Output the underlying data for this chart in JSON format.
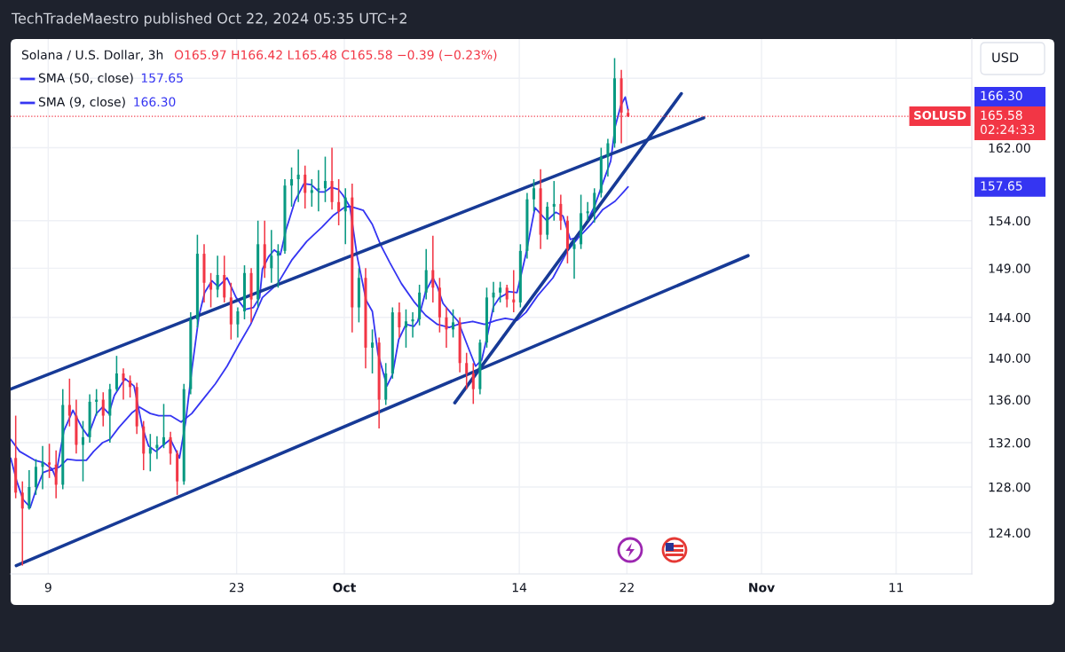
{
  "chart_data": {
    "type": "candlestick",
    "title": "Solana / U.S. Dollar, 3h",
    "subtitle": "O165.97 H166.42 L165.48 C165.58 −0.39 (−0.23%)",
    "x": [
      "2024-09-06T14:00",
      "2024-09-07T02:00",
      "2024-09-07T14:00",
      "2024-09-08T02:00",
      "2024-09-08T14:00",
      "2024-09-09T02:00",
      "2024-09-09T14:00",
      "2024-09-10T02:00",
      "2024-09-10T14:00",
      "2024-09-11T02:00",
      "2024-09-11T14:00",
      "2024-09-12T02:00",
      "2024-09-12T14:00",
      "2024-09-13T02:00",
      "2024-09-13T14:00",
      "2024-09-14T02:00",
      "2024-09-14T14:00",
      "2024-09-15T02:00",
      "2024-09-15T14:00",
      "2024-09-16T02:00",
      "2024-09-16T14:00",
      "2024-09-17T02:00",
      "2024-09-17T14:00",
      "2024-09-18T02:00",
      "2024-09-18T14:00",
      "2024-09-19T02:00",
      "2024-09-19T14:00",
      "2024-09-20T02:00",
      "2024-09-20T14:00",
      "2024-09-21T02:00",
      "2024-09-21T14:00",
      "2024-09-22T02:00",
      "2024-09-22T14:00",
      "2024-09-23T02:00",
      "2024-09-23T14:00",
      "2024-09-24T02:00",
      "2024-09-24T14:00",
      "2024-09-25T02:00",
      "2024-09-25T14:00",
      "2024-09-26T02:00",
      "2024-09-26T14:00",
      "2024-09-27T02:00",
      "2024-09-27T14:00",
      "2024-09-28T02:00",
      "2024-09-28T14:00",
      "2024-09-29T02:00",
      "2024-09-29T14:00",
      "2024-09-30T02:00",
      "2024-09-30T14:00",
      "2024-10-01T02:00",
      "2024-10-01T14:00",
      "2024-10-02T02:00",
      "2024-10-02T14:00",
      "2024-10-03T02:00",
      "2024-10-03T14:00",
      "2024-10-04T02:00",
      "2024-10-04T14:00",
      "2024-10-05T02:00",
      "2024-10-05T14:00",
      "2024-10-06T02:00",
      "2024-10-06T14:00",
      "2024-10-07T02:00",
      "2024-10-07T14:00",
      "2024-10-08T02:00",
      "2024-10-08T14:00",
      "2024-10-09T02:00",
      "2024-10-09T14:00",
      "2024-10-10T02:00",
      "2024-10-10T14:00",
      "2024-10-11T02:00",
      "2024-10-11T14:00",
      "2024-10-12T02:00",
      "2024-10-12T14:00",
      "2024-10-13T02:00",
      "2024-10-13T14:00",
      "2024-10-14T02:00",
      "2024-10-14T14:00",
      "2024-10-15T02:00",
      "2024-10-15T14:00",
      "2024-10-16T02:00",
      "2024-10-16T14:00",
      "2024-10-17T02:00",
      "2024-10-17T14:00",
      "2024-10-18T02:00",
      "2024-10-18T14:00",
      "2024-10-19T02:00",
      "2024-10-19T14:00",
      "2024-10-20T02:00",
      "2024-10-20T14:00",
      "2024-10-21T02:00",
      "2024-10-21T14:00",
      "2024-10-22T02:00"
    ],
    "ohlc": [
      [
        130.6,
        134.5,
        127.0,
        127.5
      ],
      [
        127.5,
        128.5,
        121.2,
        126.1
      ],
      [
        126.1,
        129.5,
        126.0,
        128.0
      ],
      [
        128.0,
        130.5,
        127.3,
        129.8
      ],
      [
        129.8,
        131.7,
        127.8,
        130.2
      ],
      [
        130.2,
        131.9,
        128.8,
        130.0
      ],
      [
        130.0,
        131.3,
        127.0,
        128.2
      ],
      [
        128.2,
        137.0,
        127.8,
        135.5
      ],
      [
        135.5,
        138.0,
        133.5,
        134.5
      ],
      [
        134.5,
        136.0,
        131.0,
        131.8
      ],
      [
        131.8,
        134.0,
        128.5,
        132.5
      ],
      [
        132.5,
        136.5,
        132.0,
        135.8
      ],
      [
        135.8,
        137.0,
        134.5,
        136.0
      ],
      [
        136.0,
        136.7,
        133.5,
        134.5
      ],
      [
        134.5,
        137.5,
        132.0,
        137.0
      ],
      [
        137.0,
        140.2,
        136.8,
        138.5
      ],
      [
        138.5,
        139.0,
        136.0,
        137.8
      ],
      [
        137.8,
        138.3,
        136.2,
        137.2
      ],
      [
        137.2,
        137.6,
        132.8,
        133.5
      ],
      [
        133.5,
        134.0,
        129.5,
        131.0
      ],
      [
        131.0,
        132.8,
        129.4,
        131.5
      ],
      [
        131.5,
        132.6,
        130.5,
        131.8
      ],
      [
        131.8,
        135.6,
        131.5,
        132.5
      ],
      [
        132.5,
        133.0,
        130.0,
        131.0
      ],
      [
        131.0,
        131.3,
        127.3,
        128.5
      ],
      [
        128.5,
        137.5,
        128.2,
        137.0
      ],
      [
        137.0,
        144.5,
        136.5,
        143.8
      ],
      [
        143.8,
        152.5,
        143.0,
        150.5
      ],
      [
        150.5,
        151.5,
        145.5,
        147.5
      ],
      [
        147.5,
        148.5,
        145.0,
        146.8
      ],
      [
        146.8,
        150.3,
        146.0,
        148.3
      ],
      [
        148.3,
        150.3,
        145.5,
        146.0
      ],
      [
        146.0,
        147.5,
        141.8,
        143.3
      ],
      [
        143.3,
        145.0,
        142.0,
        144.6
      ],
      [
        144.6,
        149.3,
        143.8,
        148.5
      ],
      [
        148.5,
        149.0,
        143.5,
        145.8
      ],
      [
        145.8,
        154.0,
        145.0,
        151.5
      ],
      [
        151.5,
        154.0,
        148.0,
        149.0
      ],
      [
        149.0,
        153.0,
        147.5,
        150.3
      ],
      [
        150.3,
        151.5,
        147.0,
        150.8
      ],
      [
        150.8,
        158.5,
        150.5,
        157.8
      ],
      [
        157.8,
        159.8,
        155.5,
        158.5
      ],
      [
        158.5,
        161.8,
        156.0,
        159.0
      ],
      [
        159.0,
        160.0,
        155.3,
        157.0
      ],
      [
        157.0,
        158.5,
        155.5,
        157.3
      ],
      [
        157.3,
        159.5,
        155.0,
        157.5
      ],
      [
        157.5,
        161.0,
        156.0,
        158.3
      ],
      [
        158.3,
        162.0,
        155.2,
        156.0
      ],
      [
        156.0,
        158.5,
        153.5,
        155.0
      ],
      [
        155.0,
        157.5,
        151.5,
        156.5
      ],
      [
        156.5,
        158.0,
        142.5,
        145.0
      ],
      [
        145.0,
        149.0,
        143.5,
        148.0
      ],
      [
        148.0,
        149.0,
        139.0,
        141.0
      ],
      [
        141.0,
        142.8,
        138.5,
        141.5
      ],
      [
        141.5,
        142.0,
        133.3,
        136.0
      ],
      [
        136.0,
        139.5,
        135.5,
        138.5
      ],
      [
        138.5,
        145.0,
        138.0,
        144.5
      ],
      [
        144.5,
        145.5,
        142.0,
        143.0
      ],
      [
        143.0,
        144.8,
        141.0,
        143.6
      ],
      [
        143.6,
        144.5,
        142.0,
        143.8
      ],
      [
        143.8,
        147.3,
        143.2,
        146.5
      ],
      [
        146.5,
        151.0,
        145.8,
        148.8
      ],
      [
        148.8,
        152.4,
        145.5,
        147.0
      ],
      [
        147.0,
        148.0,
        142.5,
        144.0
      ],
      [
        144.0,
        145.0,
        141.0,
        142.8
      ],
      [
        142.8,
        144.8,
        142.0,
        143.5
      ],
      [
        143.5,
        144.0,
        138.6,
        139.5
      ],
      [
        139.5,
        140.5,
        137.0,
        138.5
      ],
      [
        138.5,
        139.5,
        135.6,
        137.0
      ],
      [
        137.0,
        141.8,
        136.5,
        141.5
      ],
      [
        141.5,
        147.0,
        141.0,
        146.0
      ],
      [
        146.0,
        147.6,
        144.5,
        146.5
      ],
      [
        146.5,
        147.6,
        145.5,
        147.0
      ],
      [
        147.0,
        147.3,
        145.0,
        145.8
      ],
      [
        145.8,
        148.8,
        144.5,
        145.5
      ],
      [
        145.5,
        151.5,
        145.0,
        150.8
      ],
      [
        150.8,
        157.0,
        150.0,
        156.3
      ],
      [
        156.3,
        158.5,
        155.0,
        157.5
      ],
      [
        157.5,
        159.6,
        151.0,
        152.5
      ],
      [
        152.5,
        156.0,
        152.0,
        155.5
      ],
      [
        155.5,
        158.3,
        154.0,
        155.8
      ],
      [
        155.8,
        156.8,
        153.0,
        154.0
      ],
      [
        154.0,
        154.5,
        149.5,
        151.0
      ],
      [
        151.0,
        152.0,
        147.9,
        151.5
      ],
      [
        151.5,
        156.8,
        151.0,
        154.8
      ],
      [
        154.8,
        156.0,
        154.0,
        155.0
      ],
      [
        155.0,
        157.5,
        153.8,
        157.0
      ],
      [
        157.0,
        162.0,
        156.5,
        161.0
      ],
      [
        161.0,
        163.0,
        158.8,
        162.5
      ],
      [
        162.5,
        172.4,
        162.0,
        170.0
      ],
      [
        170.0,
        171.0,
        162.5,
        166.0
      ],
      [
        165.97,
        166.42,
        165.48,
        165.58
      ]
    ],
    "colors": [
      "#f23645",
      "#f23645",
      "#089981",
      "#089981",
      "#089981",
      "#f23645",
      "#f23645",
      "#089981",
      "#f23645",
      "#f23645",
      "#089981",
      "#089981",
      "#089981",
      "#f23645",
      "#089981",
      "#089981",
      "#f23645",
      "#f23645",
      "#f23645",
      "#f23645",
      "#089981",
      "#089981",
      "#089981",
      "#f23645",
      "#f23645",
      "#089981",
      "#089981",
      "#089981",
      "#f23645",
      "#f23645",
      "#089981",
      "#f23645",
      "#f23645",
      "#089981",
      "#089981",
      "#f23645",
      "#089981",
      "#f23645",
      "#089981",
      "#089981",
      "#089981",
      "#089981",
      "#089981",
      "#f23645",
      "#089981",
      "#089981",
      "#089981",
      "#f23645",
      "#f23645",
      "#089981",
      "#f23645",
      "#089981",
      "#f23645",
      "#089981",
      "#f23645",
      "#089981",
      "#089981",
      "#f23645",
      "#089981",
      "#089981",
      "#089981",
      "#089981",
      "#f23645",
      "#f23645",
      "#f23645",
      "#089981",
      "#f23645",
      "#f23645",
      "#f23645",
      "#089981",
      "#089981",
      "#089981",
      "#089981",
      "#f23645",
      "#f23645",
      "#089981",
      "#089981",
      "#089981",
      "#f23645",
      "#089981",
      "#089981",
      "#f23645",
      "#f23645",
      "#089981",
      "#089981",
      "#089981",
      "#089981",
      "#089981",
      "#089981",
      "#089981",
      "#f23645",
      "#f23645"
    ],
    "series": [
      {
        "type": "line",
        "name": "SMA (50, close)",
        "color": "#3535f2",
        "x": [
          "2024-09-06T05:00",
          "2024-09-06T21:00",
          "2024-09-08T00:00",
          "2024-09-08T15:00",
          "2024-09-09T07:00",
          "2024-09-09T20:00",
          "2024-09-10T10:00",
          "2024-09-11T02:00",
          "2024-09-11T20:00",
          "2024-09-12T09:00",
          "2024-09-13T01:00",
          "2024-09-13T14:00",
          "2024-09-14T06:00",
          "2024-09-15T06:00",
          "2024-09-15T19:00",
          "2024-09-16T14:00",
          "2024-09-17T05:00",
          "2024-09-18T02:00",
          "2024-09-18T21:00",
          "2024-09-19T16:00",
          "2024-09-20T13:00",
          "2024-09-21T10:00",
          "2024-09-22T07:00",
          "2024-09-23T04:00",
          "2024-09-24T01:00",
          "2024-09-24T22:00",
          "2024-09-26T01:00",
          "2024-09-27T03:00",
          "2024-09-28T05:00",
          "2024-09-29T08:00",
          "2024-09-30T05:00",
          "2024-10-01T02:00",
          "2024-10-01T13:00",
          "2024-10-02T10:00",
          "2024-10-03T02:00",
          "2024-10-03T17:00",
          "2024-10-04T09:00",
          "2024-10-05T06:00",
          "2024-10-06T04:00",
          "2024-10-07T01:00",
          "2024-10-07T22:00",
          "2024-10-08T19:00",
          "2024-10-09T16:00",
          "2024-10-10T13:00",
          "2024-10-11T10:00",
          "2024-10-12T07:00",
          "2024-10-12T23:00",
          "2024-10-13T20:00",
          "2024-10-14T12:00",
          "2024-10-15T09:00",
          "2024-10-16T12:00",
          "2024-10-17T14:00",
          "2024-10-18T11:00",
          "2024-10-19T08:00",
          "2024-10-20T05:00",
          "2024-10-21T03:00",
          "2024-10-21T18:00",
          "2024-10-22T02:00"
        ],
        "values": [
          132.3,
          131.2,
          130.4,
          130.2,
          129.6,
          129.8,
          130.5,
          130.4,
          130.4,
          131.2,
          132.0,
          132.3,
          133.4,
          134.8,
          135.3,
          134.7,
          134.5,
          134.5,
          133.9,
          134.7,
          136.1,
          137.5,
          139.2,
          141.3,
          143.3,
          146.0,
          147.4,
          149.9,
          151.8,
          153.3,
          154.6,
          155.5,
          155.5,
          155.1,
          153.6,
          151.4,
          149.6,
          147.4,
          145.6,
          144.2,
          143.3,
          143.0,
          143.4,
          143.6,
          143.3,
          143.7,
          143.9,
          143.7,
          144.5,
          146.2,
          148.0,
          150.8,
          152.3,
          153.6,
          155.2,
          156.1,
          157.1,
          157.65
        ]
      },
      {
        "type": "line",
        "name": "SMA (9, close)",
        "color": "#3535f2",
        "x": [
          "2024-09-06T05:00",
          "2024-09-06T16:00",
          "2024-09-07T03:00",
          "2024-09-07T16:00",
          "2024-09-08T02:00",
          "2024-09-08T15:00",
          "2024-09-09T07:00",
          "2024-09-09T13:00",
          "2024-09-10T04:00",
          "2024-09-10T20:00",
          "2024-09-11T12:00",
          "2024-09-11T23:00",
          "2024-09-12T14:00",
          "2024-09-13T01:00",
          "2024-09-13T12:00",
          "2024-09-13T22:00",
          "2024-09-14T17:00",
          "2024-09-15T09:00",
          "2024-09-16T00:00",
          "2024-09-16T11:00",
          "2024-09-17T00:00",
          "2024-09-17T11:00",
          "2024-09-18T02:00",
          "2024-09-18T18:00",
          "2024-09-19T05:00",
          "2024-09-19T16:00",
          "2024-09-20T05:00",
          "2024-09-20T15:00",
          "2024-09-21T04:00",
          "2024-09-21T15:00",
          "2024-09-22T07:00",
          "2024-09-22T23:00",
          "2024-09-23T15:00",
          "2024-09-24T06:00",
          "2024-09-24T17:00",
          "2024-09-24T22:00",
          "2024-09-25T09:00",
          "2024-09-25T19:00",
          "2024-09-26T06:00",
          "2024-09-26T16:00",
          "2024-09-27T08:00",
          "2024-09-28T00:00",
          "2024-09-28T13:00",
          "2024-09-29T03:00",
          "2024-09-29T13:00",
          "2024-09-30T00:00",
          "2024-09-30T13:00",
          "2024-09-30T21:00",
          "2024-10-01T10:00",
          "2024-10-01T23:00",
          "2024-10-02T15:00",
          "2024-10-03T02:00",
          "2024-10-03T12:00",
          "2024-10-04T04:00",
          "2024-10-04T14:00",
          "2024-10-05T01:00",
          "2024-10-05T14:00",
          "2024-10-06T04:00",
          "2024-10-06T11:00",
          "2024-10-07T01:00",
          "2024-10-07T14:00",
          "2024-10-07T22:00",
          "2024-10-08T08:00",
          "2024-10-09T00:00",
          "2024-10-09T11:00",
          "2024-10-10T03:00",
          "2024-10-10T18:00",
          "2024-10-11T05:00",
          "2024-10-11T16:00",
          "2024-10-12T02:00",
          "2024-10-12T13:00",
          "2024-10-12T23:00",
          "2024-10-13T04:00",
          "2024-10-13T20:00",
          "2024-10-14T12:00",
          "2024-10-15T04:00",
          "2024-10-16T01:00",
          "2024-10-16T17:00",
          "2024-10-17T06:00",
          "2024-10-17T19:00",
          "2024-10-18T06:00",
          "2024-10-18T22:00",
          "2024-10-19T14:00",
          "2024-10-20T05:00",
          "2024-10-20T19:00",
          "2024-10-21T03:00",
          "2024-10-21T13:00",
          "2024-10-21T21:00",
          "2024-10-22T02:00"
        ],
        "values": [
          130.6,
          128.5,
          126.9,
          126.2,
          127.7,
          129.3,
          129.6,
          128.9,
          133.1,
          135.0,
          133.4,
          132.6,
          134.7,
          135.3,
          134.7,
          136.4,
          138.0,
          137.3,
          133.4,
          131.7,
          131.2,
          131.7,
          132.3,
          130.6,
          133.9,
          138.8,
          144.2,
          146.5,
          147.7,
          147.1,
          148.0,
          146.0,
          144.8,
          145.0,
          146.0,
          148.9,
          150.2,
          150.9,
          150.4,
          153.0,
          156.1,
          158.0,
          157.9,
          157.1,
          157.1,
          157.6,
          157.4,
          156.8,
          155.5,
          150.2,
          145.7,
          144.6,
          140.4,
          137.3,
          138.4,
          141.8,
          143.3,
          143.1,
          143.6,
          146.6,
          148.0,
          147.1,
          145.4,
          144.3,
          143.6,
          141.3,
          139.2,
          139.8,
          142.4,
          145.1,
          146.0,
          146.3,
          146.6,
          146.5,
          150.5,
          155.4,
          154.0,
          154.9,
          154.5,
          152.0,
          152.2,
          153.6,
          155.5,
          158.1,
          160.5,
          164.4,
          166.8,
          167.8,
          166.3
        ]
      },
      {
        "type": "line",
        "color": "#173a96",
        "x": [
          "2024-09-06T05:00",
          "2024-10-27T17:00"
        ],
        "values": [
          137.0,
          165.4
        ]
      },
      {
        "type": "line",
        "color": "#173a96",
        "x": [
          "2024-09-06T15:00",
          "2024-10-31T00:00"
        ],
        "values": [
          121.2,
          150.3
        ]
      },
      {
        "type": "line",
        "color": "#173a96",
        "x": [
          "2024-10-09T05:00",
          "2024-10-26T01:00"
        ],
        "values": [
          135.7,
          168.2
        ]
      }
    ],
    "xlim": [
      "2024-09-06T05:00",
      "2024-11-16T15:00"
    ],
    "xticks": [
      {
        "value": "2024-09-09",
        "label": "9"
      },
      {
        "value": "2024-09-23",
        "label": "23"
      },
      {
        "value": "2024-10-01",
        "label": "Oct"
      },
      {
        "value": "2024-10-14",
        "label": "14"
      },
      {
        "value": "2024-10-22",
        "label": "22"
      },
      {
        "value": "2024-11-01",
        "label": "Nov"
      },
      {
        "value": "2024-11-11",
        "label": "11"
      }
    ],
    "ylim": [
      120.5,
      174.7
    ],
    "yticks": [
      {
        "value": 124,
        "label": "124.00"
      },
      {
        "value": 128,
        "label": "128.00"
      },
      {
        "value": 132,
        "label": "132.00"
      },
      {
        "value": 136,
        "label": "136.00"
      },
      {
        "value": 140,
        "label": "140.00"
      },
      {
        "value": 144,
        "label": "144.00"
      },
      {
        "value": 149,
        "label": "149.00"
      },
      {
        "value": 154,
        "label": "154.00"
      },
      {
        "value": 162,
        "label": "162.00"
      },
      {
        "value": 170,
        "label": null
      }
    ],
    "log": true,
    "grid": true,
    "legend": "top left",
    "ref_lines": [
      {
        "axis": "y",
        "value": 165.58,
        "label": "SOLUSD",
        "color": "#f23645",
        "line_style": "dotted"
      }
    ],
    "annotations": [
      "TechTradeMaestro published Oct 22, 2024 05:35 UTC+2",
      "USD",
      "165.58",
      "157.65",
      "166.30",
      "02:24:33"
    ]
  }
}
